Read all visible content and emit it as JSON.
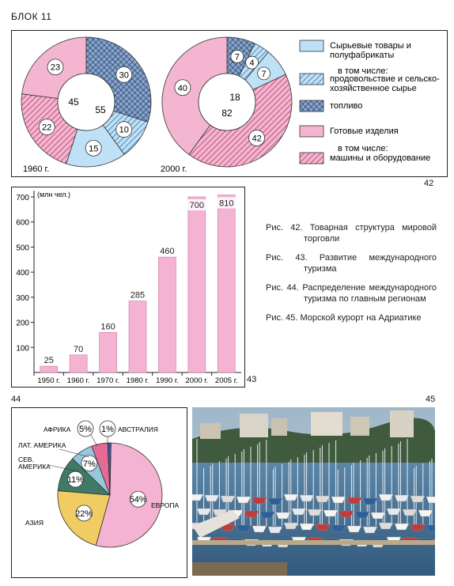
{
  "header": {
    "block_label": "БЛОК 11"
  },
  "figure_numbers": {
    "fig42": "42",
    "fig43": "43",
    "fig44": "44",
    "fig45": "45"
  },
  "captions": [
    "Рис. 42. Товарная структура мировой торговли",
    "Рис. 43. Развитие международного туризма",
    "Рис. 44. Распределение международного туризма по главным регионам",
    "Рис. 45. Морской курорт на Адриатике"
  ],
  "colors": {
    "raw": "#bfe1f5",
    "food_hatch": "#7aa6cf",
    "fuel": "#8aa5c8",
    "manufactured": "#f3b5cf",
    "machinery_hatch": "#c04f72",
    "bar_fill": "#f5b3d3",
    "europe": "#f5b3d3",
    "asia": "#f1cc62",
    "north_america": "#3e7a66",
    "latin_america": "#96c7dc",
    "africa": "#e56a96",
    "australia": "#3a56a7"
  },
  "chart_data": [
    {
      "type": "pie",
      "title": "1960 г.",
      "variant": "donut",
      "inner_labels": {
        "raw_total": "55",
        "manufactured_total": "45"
      },
      "slices": [
        {
          "name": "топливо",
          "value": 30,
          "label": "30"
        },
        {
          "name": "продовольствие и сельскохозяйственное сырье",
          "value": 10,
          "label": "10"
        },
        {
          "name": "Сырьевые товары и полуфабрикаты (прочие)",
          "value": 15,
          "label": "15"
        },
        {
          "name": "машины и оборудование",
          "value": 22,
          "label": "22"
        },
        {
          "name": "Готовые изделия (прочие)",
          "value": 23,
          "label": "23"
        }
      ]
    },
    {
      "type": "pie",
      "title": "2000 г.",
      "variant": "donut",
      "inner_labels": {
        "raw_total": "18",
        "manufactured_total": "82"
      },
      "slices": [
        {
          "name": "топливо",
          "value": 7,
          "label": "7"
        },
        {
          "name": "продовольствие и сельскохозяйственное сырье",
          "value": 4,
          "label": "4"
        },
        {
          "name": "Сырьевые товары и полуфабрикаты (прочие)",
          "value": 7,
          "label": "7"
        },
        {
          "name": "машины и оборудование",
          "value": 42,
          "label": "42"
        },
        {
          "name": "Готовые изделия (прочие)",
          "value": 40,
          "label": "40"
        }
      ],
      "legend": [
        {
          "text": "Сырьевые товары и полуфабрикаты",
          "swatch": "raw"
        },
        {
          "text": "в том числе:",
          "swatch": null
        },
        {
          "text": "продовольствие и сельско-хозяйственное сырье",
          "swatch": "food"
        },
        {
          "text": "топливо",
          "swatch": "fuel"
        },
        {
          "text": "Готовые изделия",
          "swatch": "manufactured"
        },
        {
          "text": "в том числе:",
          "swatch": null
        },
        {
          "text": "машины и оборудование",
          "swatch": "machinery"
        }
      ]
    },
    {
      "type": "bar",
      "ylabel": "(млн чел.)",
      "categories": [
        "1950 г.",
        "1960 г.",
        "1970 г.",
        "1980 г.",
        "1990 г.",
        "2000 г.",
        "2005 г."
      ],
      "values": [
        25,
        70,
        160,
        285,
        460,
        700,
        810
      ],
      "value_labels": [
        "25",
        "70",
        "160",
        "285",
        "460",
        "700",
        "810"
      ],
      "yticks": [
        "100",
        "200",
        "300",
        "400",
        "500",
        "600",
        "700"
      ],
      "ylim": [
        0,
        700
      ]
    },
    {
      "type": "pie",
      "slices": [
        {
          "name": "ЕВРОПА",
          "value": 54,
          "label": "54%"
        },
        {
          "name": "АЗИЯ",
          "value": 22,
          "label": "22%"
        },
        {
          "name": "СЕВ. АМЕРИКА",
          "value": 11,
          "label": "11%"
        },
        {
          "name": "ЛАТ. АМЕРИКА",
          "value": 7,
          "label": "7%"
        },
        {
          "name": "АФРИКА",
          "value": 5,
          "label": "5%"
        },
        {
          "name": "АВСТРАЛИЯ",
          "value": 1,
          "label": "1%"
        }
      ],
      "region_labels": {
        "europe": "ЕВРОПА",
        "asia": "АЗИЯ",
        "north_america_1": "СЕВ.",
        "north_america_2": "АМЕРИКА",
        "latin_america": "ЛАТ. АМЕРИКА",
        "africa": "АФРИКА",
        "australia": "АВСТРАЛИЯ"
      }
    }
  ]
}
